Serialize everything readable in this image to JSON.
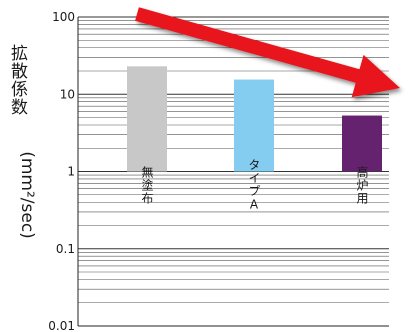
{
  "chart_data": {
    "type": "bar",
    "categories": [
      "無塗布",
      "タイプA",
      "高炉用"
    ],
    "values": [
      23,
      15.5,
      5.3
    ],
    "bar_colors": [
      "#c8c8c8",
      "#85cdf0",
      "#65226f"
    ],
    "ylabel_main": "拡散係数",
    "ylabel_unit": "(mm²/sec)",
    "yscale": "log",
    "ylim": [
      0.01,
      100
    ],
    "y_ticks": [
      "100",
      "10",
      "1",
      "0.1",
      "0.01"
    ],
    "grid": true,
    "annotation": {
      "type": "arrow",
      "color": "#e8141b",
      "direction": "down-right"
    }
  }
}
